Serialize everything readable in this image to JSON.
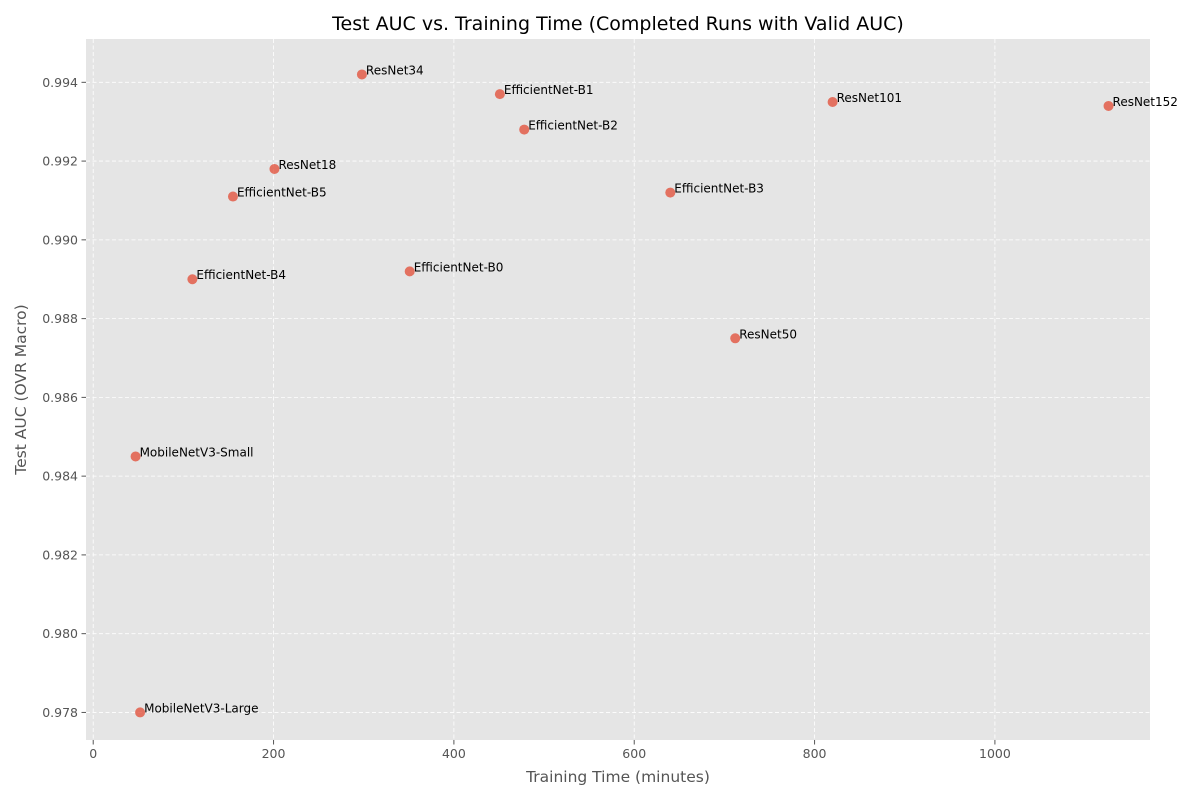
{
  "chart_data": {
    "type": "scatter",
    "title": "Test AUC vs. Training Time (Completed Runs with Valid AUC)",
    "xlabel": "Training Time (minutes)",
    "ylabel": "Test AUC (OVR Macro)",
    "xlim": [
      -8,
      1172
    ],
    "ylim": [
      0.9773,
      0.9951
    ],
    "xticks": [
      0,
      200,
      400,
      600,
      800,
      1000
    ],
    "yticks": [
      0.978,
      0.98,
      0.982,
      0.984,
      0.986,
      0.988,
      0.99,
      0.992,
      0.994
    ],
    "xtick_labels": [
      "0",
      "200",
      "400",
      "600",
      "800",
      "1000"
    ],
    "ytick_labels": [
      "0.978",
      "0.980",
      "0.982",
      "0.984",
      "0.986",
      "0.988",
      "0.990",
      "0.992",
      "0.994"
    ],
    "grid": true,
    "marker_color": "#e24a33",
    "background_color": "#e5e5e5",
    "points": [
      {
        "label": "ResNet34",
        "x": 298,
        "y": 0.9942
      },
      {
        "label": "EfficientNet-B1",
        "x": 451,
        "y": 0.9937
      },
      {
        "label": "ResNet101",
        "x": 820,
        "y": 0.9935
      },
      {
        "label": "ResNet152",
        "x": 1126,
        "y": 0.9934
      },
      {
        "label": "EfficientNet-B2",
        "x": 478,
        "y": 0.9928
      },
      {
        "label": "ResNet18",
        "x": 201,
        "y": 0.9918
      },
      {
        "label": "EfficientNet-B3",
        "x": 640,
        "y": 0.9912
      },
      {
        "label": "EfficientNet-B5",
        "x": 155,
        "y": 0.9911
      },
      {
        "label": "EfficientNet-B0",
        "x": 351,
        "y": 0.9892
      },
      {
        "label": "EfficientNet-B4",
        "x": 110,
        "y": 0.989
      },
      {
        "label": "ResNet50",
        "x": 712,
        "y": 0.9875
      },
      {
        "label": "MobileNetV3-Small",
        "x": 47,
        "y": 0.9845
      },
      {
        "label": "MobileNetV3-Large",
        "x": 52,
        "y": 0.978
      }
    ]
  }
}
